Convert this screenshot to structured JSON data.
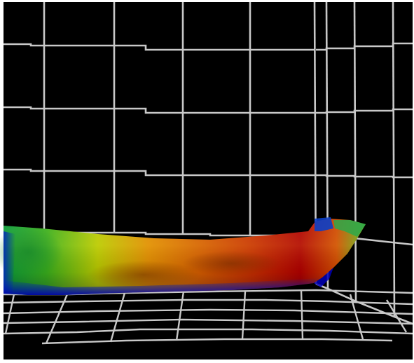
{
  "scene": {
    "view": "3d-surface-plot",
    "background_color": "#000000",
    "frame_color": "#ffffff",
    "grid_color": "#c8c8c8",
    "surface_colormap": [
      "#0000aa",
      "#0050c8",
      "#009a3a",
      "#5fbf10",
      "#d8d000",
      "#e07800",
      "#c82800",
      "#a00000"
    ],
    "back_wall_grid": true,
    "side_wall_grid": true,
    "floor_grid": true
  }
}
